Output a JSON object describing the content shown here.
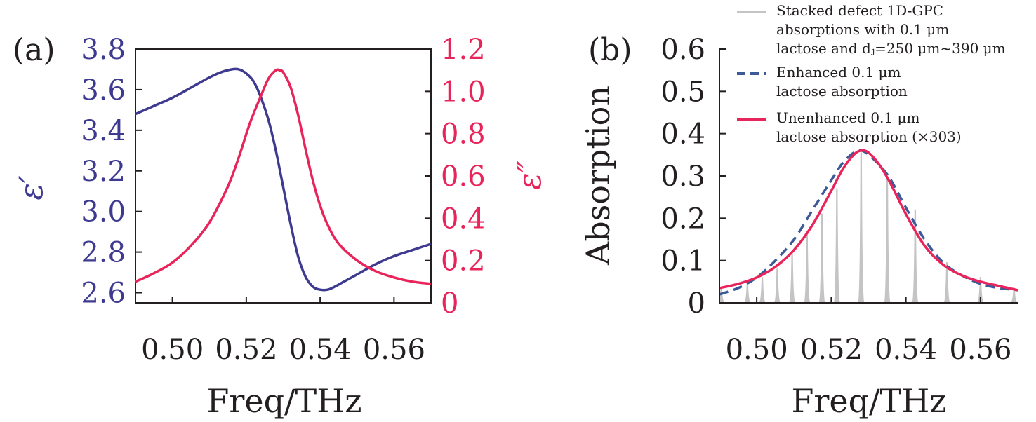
{
  "panels": {
    "a": {
      "label": "(a)",
      "left_ylabel": "ε′",
      "right_ylabel": "ε″",
      "xlabel": "Freq/THz",
      "xticks": [
        "0.50",
        "0.52",
        "0.54",
        "0.56"
      ],
      "left_yticks": [
        "2.6",
        "2.8",
        "3.0",
        "3.2",
        "3.4",
        "3.6",
        "3.8"
      ],
      "right_yticks": [
        "0",
        "0.2",
        "0.4",
        "0.6",
        "0.8",
        "1.0",
        "1.2"
      ]
    },
    "b": {
      "label": "(b)",
      "ylabel": "Absorption",
      "xlabel": "Freq/THz",
      "xticks": [
        "0.50",
        "0.52",
        "0.54",
        "0.56"
      ],
      "yticks": [
        "0",
        "0.1",
        "0.2",
        "0.3",
        "0.4",
        "0.5",
        "0.6"
      ],
      "legend": [
        {
          "lines": [
            "Stacked defect 1D-GPC",
            "absorptions with 0.1 μm",
            "lactose and dⱼ=250 μm~390 μm"
          ]
        },
        {
          "lines": [
            "Enhanced 0.1 μm",
            "lactose absorption"
          ]
        },
        {
          "lines": [
            "Unenhanced 0.1 μm",
            "lactose absorption (×303)"
          ]
        }
      ]
    }
  },
  "colors": {
    "eps_real": "#3d3a8f",
    "eps_imag": "#e8245a",
    "stacked": "#c4c4c4",
    "enhanced": "#3c5a98",
    "unenhanced": "#e8245a",
    "axis": "#231f20"
  },
  "chart_data": [
    {
      "type": "line",
      "title": "",
      "xlabel": "Freq/THz",
      "ylabel": "ε′",
      "y2label": "ε″",
      "xlim": [
        0.49,
        0.57
      ],
      "ylim": [
        2.55,
        3.8
      ],
      "y2lim": [
        0,
        1.2
      ],
      "series": [
        {
          "name": "ε′",
          "axis": "left",
          "x": [
            0.49,
            0.495,
            0.5,
            0.505,
            0.51,
            0.513,
            0.516,
            0.518,
            0.52,
            0.522,
            0.524,
            0.526,
            0.528,
            0.53,
            0.532,
            0.534,
            0.536,
            0.538,
            0.54,
            0.542,
            0.544,
            0.546,
            0.55,
            0.555,
            0.56,
            0.565,
            0.57
          ],
          "y": [
            3.48,
            3.52,
            3.56,
            3.61,
            3.66,
            3.685,
            3.7,
            3.7,
            3.68,
            3.64,
            3.56,
            3.45,
            3.3,
            3.12,
            2.94,
            2.78,
            2.68,
            2.63,
            2.615,
            2.615,
            2.63,
            2.65,
            2.69,
            2.74,
            2.78,
            2.81,
            2.84
          ]
        },
        {
          "name": "ε″",
          "axis": "right",
          "x": [
            0.49,
            0.495,
            0.5,
            0.505,
            0.51,
            0.515,
            0.518,
            0.521,
            0.524,
            0.526,
            0.528,
            0.529,
            0.53,
            0.532,
            0.534,
            0.536,
            0.538,
            0.54,
            0.542,
            0.545,
            0.55,
            0.555,
            0.56,
            0.565,
            0.57
          ],
          "y": [
            0.1,
            0.14,
            0.19,
            0.27,
            0.38,
            0.55,
            0.69,
            0.85,
            0.98,
            1.06,
            1.1,
            1.1,
            1.09,
            1.02,
            0.89,
            0.73,
            0.58,
            0.46,
            0.37,
            0.28,
            0.2,
            0.15,
            0.12,
            0.1,
            0.09
          ]
        }
      ]
    },
    {
      "type": "line",
      "title": "",
      "xlabel": "Freq/THz",
      "ylabel": "Absorption",
      "xlim": [
        0.49,
        0.57
      ],
      "ylim": [
        0,
        0.6
      ],
      "series": [
        {
          "name": "Stacked defect 1D-GPC absorptions with 0.1 μm lactose and dⱼ=250 μm~390 μm",
          "style": "peaks",
          "peaks_x": [
            0.4905,
            0.4975,
            0.5015,
            0.5055,
            0.5095,
            0.5135,
            0.5175,
            0.5215,
            0.528,
            0.535,
            0.5425,
            0.551,
            0.56,
            0.569
          ],
          "peaks_y": [
            0.035,
            0.045,
            0.06,
            0.08,
            0.115,
            0.16,
            0.21,
            0.27,
            0.355,
            0.3,
            0.22,
            0.095,
            0.06,
            0.035
          ]
        },
        {
          "name": "Enhanced 0.1 μm lactose absorption",
          "style": "dashed",
          "x": [
            0.49,
            0.495,
            0.5,
            0.505,
            0.51,
            0.515,
            0.52,
            0.523,
            0.526,
            0.528,
            0.53,
            0.533,
            0.536,
            0.54,
            0.545,
            0.55,
            0.555,
            0.56,
            0.565,
            0.57
          ],
          "y": [
            0.02,
            0.035,
            0.06,
            0.1,
            0.15,
            0.22,
            0.29,
            0.33,
            0.355,
            0.36,
            0.35,
            0.325,
            0.29,
            0.225,
            0.15,
            0.095,
            0.065,
            0.045,
            0.035,
            0.03
          ]
        },
        {
          "name": "Unenhanced 0.1 μm lactose absorption (×303)",
          "style": "solid",
          "x": [
            0.49,
            0.495,
            0.5,
            0.505,
            0.51,
            0.515,
            0.52,
            0.523,
            0.526,
            0.528,
            0.53,
            0.533,
            0.536,
            0.54,
            0.545,
            0.55,
            0.555,
            0.56,
            0.565,
            0.57
          ],
          "y": [
            0.035,
            0.045,
            0.06,
            0.085,
            0.125,
            0.185,
            0.265,
            0.315,
            0.35,
            0.36,
            0.355,
            0.325,
            0.28,
            0.21,
            0.135,
            0.09,
            0.065,
            0.05,
            0.04,
            0.03
          ]
        }
      ]
    }
  ]
}
